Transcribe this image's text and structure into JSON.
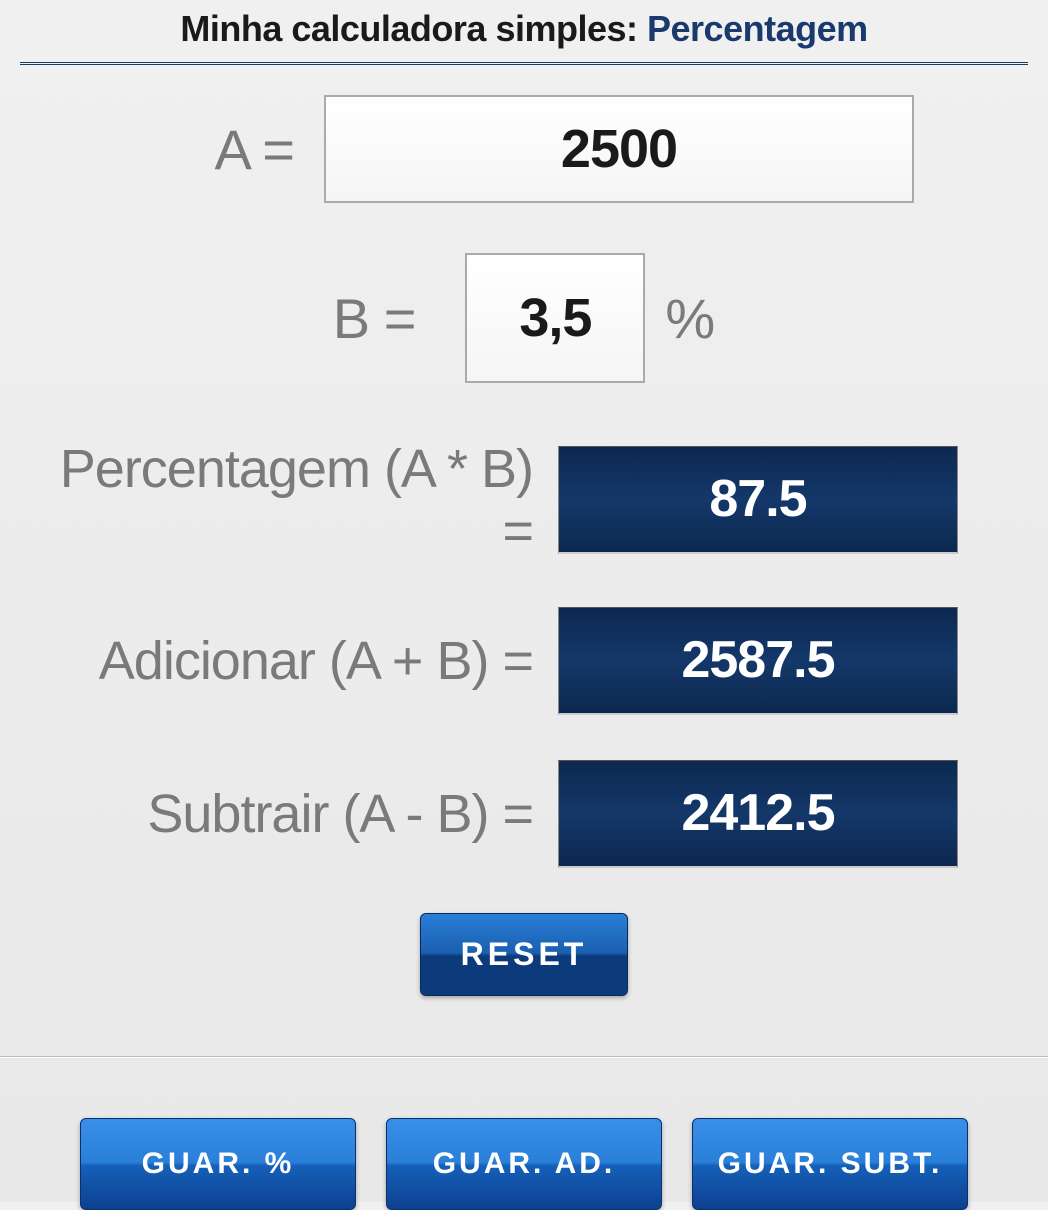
{
  "header": {
    "prefix": "Minha calculadora simples: ",
    "highlight": "Percentagem"
  },
  "inputs": {
    "a_label": "A =",
    "a_value": "2500",
    "b_label": "B =",
    "b_value": "3,5",
    "b_suffix": "%"
  },
  "results": {
    "percent_label": "Percentagem (A * B) =",
    "percent_value": "87.5",
    "add_label": "Adicionar (A + B) =",
    "add_value": "2587.5",
    "sub_label": "Subtrair (A - B) =",
    "sub_value": "2412.5"
  },
  "buttons": {
    "reset": "RESET",
    "save_percent": "GUAR. %",
    "save_add": "GUAR. AD.",
    "save_sub": "GUAR. SUBT."
  },
  "colors": {
    "header_accent": "#1a3a6e",
    "label_text": "#7a7a7a",
    "result_bg": "#0c2850",
    "button_blue": "#1560b8"
  }
}
